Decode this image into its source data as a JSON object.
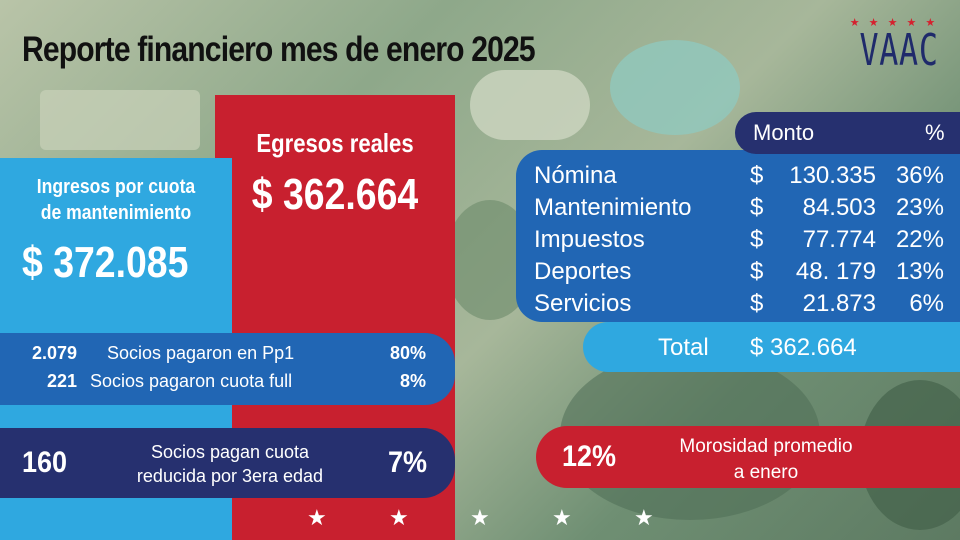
{
  "title": "Reporte financiero mes de enero 2025",
  "logo": {
    "stars": "★ ★ ★ ★ ★",
    "text": "VAAC"
  },
  "ingresos": {
    "label_line1": "Ingresos por cuota",
    "label_line2": "de mantenimiento",
    "value": "$ 372.085"
  },
  "egresos": {
    "label": "Egresos reales",
    "value": "$ 362.664"
  },
  "socios": [
    {
      "count": "2.079",
      "label": "Socios pagaron en Pp1",
      "pct": "80%"
    },
    {
      "count": "221",
      "label": "Socios pagaron cuota full",
      "pct": "8%"
    }
  ],
  "tercera_edad": {
    "count": "160",
    "label_line1": "Socios pagan cuota",
    "label_line2": "reducida por 3era edad",
    "pct": "7%"
  },
  "table": {
    "header_monto": "Monto",
    "header_pct": "%",
    "rows": [
      {
        "label": "Nómina",
        "currency": "$",
        "amount": "130.335",
        "pct": "36%"
      },
      {
        "label": "Mantenimiento",
        "currency": "$",
        "amount": "84.503",
        "pct": "23%"
      },
      {
        "label": "Impuestos",
        "currency": "$",
        "amount": "77.774",
        "pct": "22%"
      },
      {
        "label": "Deportes",
        "currency": "$",
        "amount": "48. 179",
        "pct": "13%"
      },
      {
        "label": "Servicios",
        "currency": "$",
        "amount": "21.873",
        "pct": "6%"
      }
    ],
    "total_label": "Total",
    "total_value": "$ 362.664"
  },
  "morosidad": {
    "pct": "12%",
    "label_line1": "Morosidad promedio",
    "label_line2": "a enero"
  },
  "footer_stars": [
    "★",
    "★",
    "★",
    "★",
    "★"
  ],
  "colors": {
    "red": "#c8202f",
    "blue": "#2166b4",
    "light_blue": "#2fa8e0",
    "navy": "#26306f"
  }
}
